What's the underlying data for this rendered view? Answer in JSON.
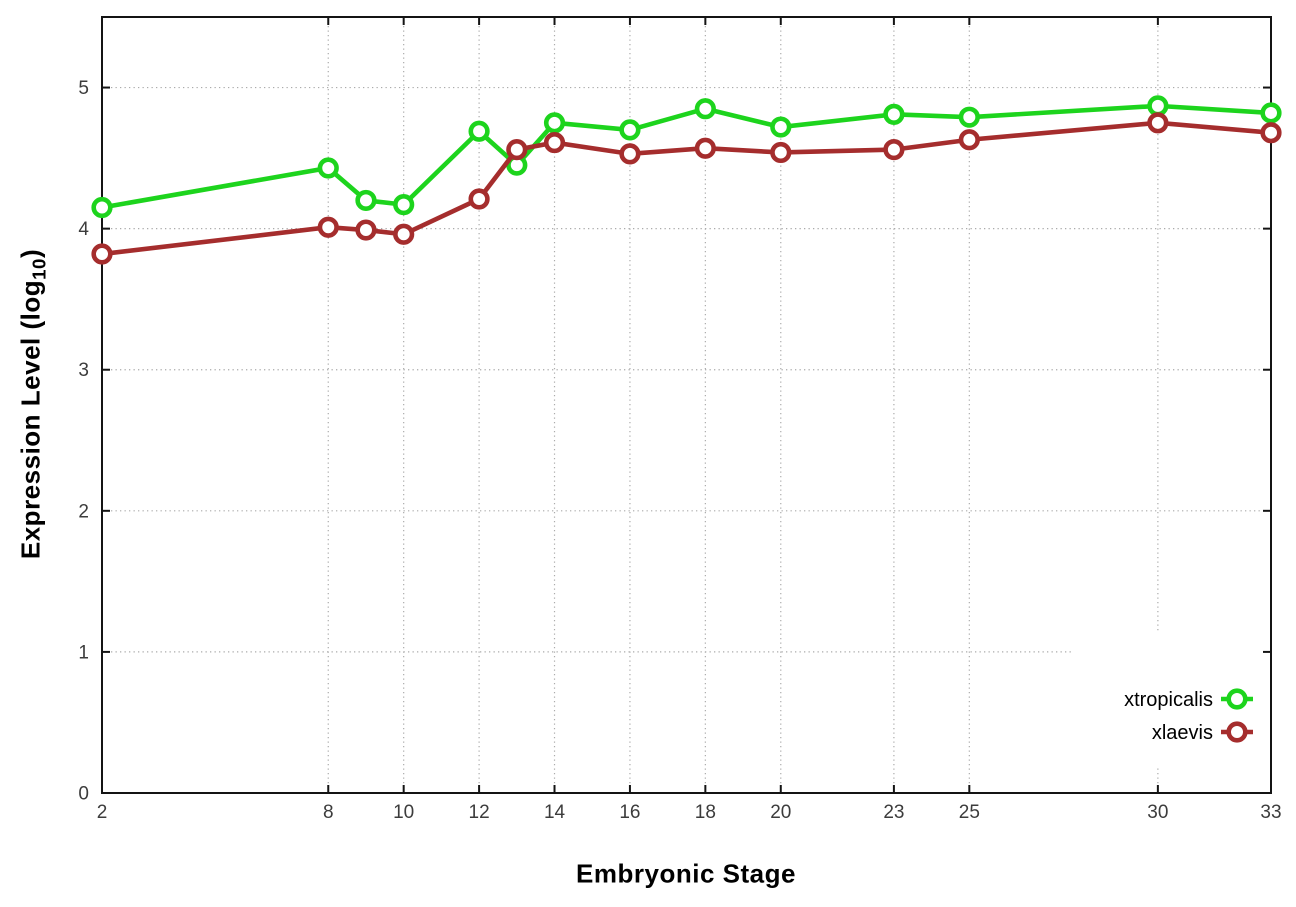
{
  "chart_data": {
    "type": "line",
    "title": "",
    "xlabel": "Embryonic Stage",
    "ylabel": "Expression Level (log10)",
    "ylabel_parts": {
      "pre": "Expression Level (log",
      "sub": "10",
      "post": ")"
    },
    "x": [
      2,
      8,
      9,
      10,
      12,
      13,
      14,
      16,
      18,
      20,
      23,
      25,
      30,
      33
    ],
    "xtick_labels": [
      "2",
      "8",
      "10",
      "12",
      "14",
      "16",
      "18",
      "20",
      "23",
      "25",
      "30",
      "33"
    ],
    "xticks": [
      2,
      8,
      10,
      12,
      14,
      16,
      18,
      20,
      23,
      25,
      30,
      33
    ],
    "ytick_labels": [
      "0",
      "1",
      "2",
      "3",
      "4",
      "5"
    ],
    "yticks": [
      0,
      1,
      2,
      3,
      4,
      5
    ],
    "xlim": [
      2,
      33
    ],
    "ylim": [
      0,
      5.5
    ],
    "grid": true,
    "grid_style": "dotted",
    "legend_position": "bottom-right",
    "marker": "open-circle",
    "series": [
      {
        "name": "xtropicalis",
        "color": "#1dd41d",
        "values": [
          4.15,
          4.43,
          4.2,
          4.17,
          4.69,
          4.45,
          4.75,
          4.7,
          4.85,
          4.72,
          4.81,
          4.79,
          4.87,
          4.82
        ]
      },
      {
        "name": "xlaevis",
        "color": "#a52d2d",
        "values": [
          3.82,
          4.01,
          3.99,
          3.96,
          4.21,
          4.56,
          4.61,
          4.53,
          4.57,
          4.54,
          4.56,
          4.63,
          4.75,
          4.68
        ]
      }
    ],
    "colors": {
      "background": "#ffffff",
      "border": "#141414",
      "grid": "#ababab",
      "tick_label": "#3c3c3c",
      "legend_text": "#000000"
    }
  }
}
